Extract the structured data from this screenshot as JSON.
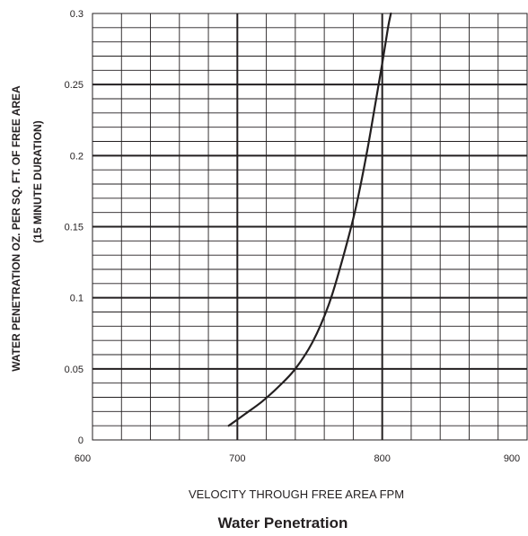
{
  "chart_data": {
    "type": "line",
    "title": "Water Penetration",
    "xlabel": "VELOCITY THROUGH FREE AREA FPM",
    "ylabel": [
      "WATER PENETRATION OZ. PER SQ. FT. OF FREE AREA",
      "(15  MINUTE DURATION)"
    ],
    "xlim": [
      600,
      900
    ],
    "ylim": [
      0,
      0.3
    ],
    "x_ticks": [
      600,
      700,
      800,
      900
    ],
    "x_tick_labels": [
      "600",
      "700",
      "800",
      "900"
    ],
    "y_ticks": [
      0,
      0.05,
      0.1,
      0.15,
      0.2,
      0.25,
      0.3
    ],
    "y_tick_labels": [
      "0",
      "0.05",
      "0.1",
      "0.15",
      "0.2",
      "0.25",
      "0.3"
    ],
    "x_minor_step": 20,
    "y_minor_step": 0.01,
    "grid": true,
    "line_color": "#231f20",
    "series": [
      {
        "x": [
          694,
          705,
          717,
          728,
          740,
          752,
          763,
          772,
          781,
          789,
          795,
          800,
          804,
          806
        ],
        "y": [
          0.01,
          0.018,
          0.027,
          0.037,
          0.05,
          0.069,
          0.095,
          0.125,
          0.16,
          0.2,
          0.235,
          0.265,
          0.29,
          0.3
        ]
      }
    ]
  }
}
